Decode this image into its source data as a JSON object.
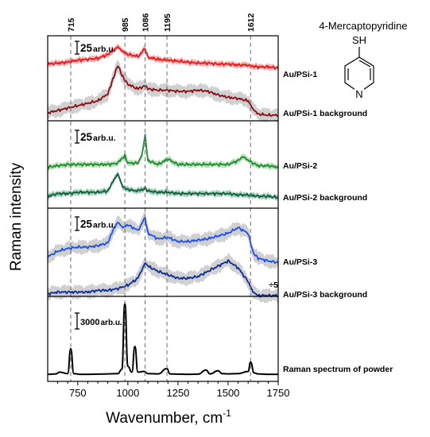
{
  "chart_data": {
    "type": "line",
    "xlabel": "Wavenumber, cm",
    "xlabel_sup": "-1",
    "ylabel": "Raman intensity",
    "xlim": [
      600,
      1750
    ],
    "x_ticks": [
      750,
      1000,
      1250,
      1500,
      1750
    ],
    "x_tick_labels": [
      "750",
      "1000",
      "1250",
      "1500",
      "1750"
    ],
    "peak_lines": [
      715,
      985,
      1086,
      1195,
      1612
    ],
    "peak_labels": [
      "715",
      "985",
      "1086",
      "1195",
      "1612"
    ],
    "molecule": {
      "name": "4-Mercaptopyridine",
      "thiol": "SH",
      "nitrogen": "N"
    },
    "panels": [
      {
        "scale_value": "25",
        "scale_unit": "arb.u.",
        "series": [
          {
            "name": "Au/PSi-1",
            "color": "#e8161b",
            "band": "#ff9f9f",
            "x": [
              600,
              650,
              700,
              750,
              800,
              850,
              900,
              925,
              950,
              975,
              1000,
              1050,
              1086,
              1100,
              1150,
              1200,
              1250,
              1300,
              1350,
              1400,
              1450,
              1500,
              1550,
              1600,
              1612,
              1650,
              1700,
              1750
            ],
            "y": [
              12,
              13,
              14,
              16,
              17,
              18,
              22,
              26,
              30,
              25,
              22,
              20,
              28,
              19,
              17,
              16,
              15,
              14,
              13,
              13,
              12,
              12,
              11,
              11,
              10,
              9,
              9,
              8
            ]
          },
          {
            "name": "Au/PSi-1 background",
            "color": "#8b0d14",
            "band": "#c8c8c8",
            "x": [
              600,
              650,
              700,
              750,
              800,
              850,
              900,
              925,
              950,
              975,
              1000,
              1050,
              1086,
              1100,
              1150,
              1200,
              1250,
              1300,
              1350,
              1400,
              1450,
              1500,
              1550,
              1600,
              1625,
              1650,
              1700,
              1750
            ],
            "y": [
              2,
              4,
              6,
              8,
              10,
              12,
              18,
              30,
              42,
              32,
              26,
              22,
              25,
              22,
              21,
              21,
              20,
              20,
              21,
              20,
              17,
              15,
              14,
              12,
              5,
              1,
              0,
              0
            ]
          }
        ]
      },
      {
        "scale_value": "25",
        "scale_unit": "arb.u.",
        "series": [
          {
            "name": "Au/PSi-2",
            "color": "#1f8c2a",
            "band": "#a5dba9",
            "x": [
              600,
              650,
              700,
              750,
              800,
              850,
              900,
              950,
              985,
              1000,
              1050,
              1070,
              1086,
              1100,
              1150,
              1200,
              1250,
              1300,
              1350,
              1400,
              1450,
              1500,
              1550,
              1575,
              1600,
              1650,
              1700,
              1750
            ],
            "y": [
              1,
              2,
              3,
              3,
              3,
              3,
              3,
              4,
              10,
              4,
              4,
              10,
              25,
              6,
              3,
              7,
              3,
              3,
              3,
              3,
              3,
              3,
              6,
              9,
              6,
              2,
              2,
              1
            ]
          },
          {
            "name": "Au/PSi-2 background",
            "color": "#145a3c",
            "band": "#8fc9ae",
            "x": [
              600,
              650,
              700,
              750,
              800,
              850,
              900,
              925,
              950,
              975,
              1000,
              1050,
              1086,
              1100,
              1150,
              1200,
              1250,
              1300,
              1350,
              1400,
              1450,
              1500,
              1550,
              1600,
              1650,
              1700,
              1750
            ],
            "y": [
              3,
              5,
              5,
              6,
              6,
              6,
              7,
              14,
              20,
              10,
              8,
              7,
              9,
              7,
              6,
              6,
              5,
              5,
              5,
              5,
              5,
              5,
              4,
              4,
              3,
              3,
              2
            ]
          }
        ]
      },
      {
        "scale_value": "25",
        "scale_unit": "arb.u.",
        "series": [
          {
            "name": "Au/PSi-3",
            "color": "#1a4ff0",
            "band": "#c8c8c8",
            "x": [
              600,
              650,
              700,
              750,
              800,
              850,
              900,
              925,
              950,
              975,
              1000,
              1050,
              1086,
              1100,
              1150,
              1200,
              1250,
              1300,
              1350,
              1400,
              1450,
              1500,
              1550,
              1600,
              1625,
              1650,
              1700,
              1750
            ],
            "y": [
              5,
              9,
              11,
              12,
              12,
              13,
              15,
              24,
              30,
              26,
              28,
              24,
              33,
              22,
              18,
              19,
              16,
              16,
              17,
              18,
              20,
              22,
              26,
              22,
              8,
              4,
              2,
              1
            ]
          },
          {
            "name": "Au/PSi-3 background",
            "color": "#0d2a9a",
            "band": "#c8c8c8",
            "annotation": "÷5",
            "x": [
              600,
              650,
              700,
              750,
              800,
              850,
              900,
              950,
              1000,
              1050,
              1086,
              1100,
              1150,
              1200,
              1250,
              1300,
              1350,
              1400,
              1450,
              1500,
              1550,
              1600,
              1625,
              1650,
              1700,
              1750
            ],
            "y": [
              1,
              2,
              2,
              2,
              2,
              3,
              3,
              4,
              6,
              10,
              19,
              17,
              14,
              12,
              10,
              10,
              11,
              14,
              17,
              20,
              16,
              8,
              2,
              0,
              0,
              0
            ]
          }
        ]
      },
      {
        "scale_value": "3000",
        "scale_unit": "arb.u.",
        "series": [
          {
            "name": "Raman spectrum of powder",
            "color": "#000000",
            "band": "",
            "x": [
              600,
              640,
              660,
              700,
              715,
              730,
              760,
              800,
              850,
              900,
              950,
              970,
              985,
              1000,
              1020,
              1035,
              1050,
              1080,
              1100,
              1150,
              1195,
              1210,
              1250,
              1300,
              1350,
              1390,
              1410,
              1450,
              1470,
              1500,
              1550,
              1600,
              1612,
              1630,
              1650,
              1700,
              1750
            ],
            "y": [
              100,
              150,
              400,
              200,
              3700,
              200,
              100,
              100,
              120,
              150,
              200,
              800,
              10000,
              1200,
              400,
              4000,
              400,
              500,
              200,
              150,
              900,
              150,
              120,
              100,
              120,
              700,
              150,
              600,
              200,
              150,
              200,
              500,
              1800,
              300,
              150,
              100,
              100
            ]
          }
        ]
      }
    ]
  }
}
